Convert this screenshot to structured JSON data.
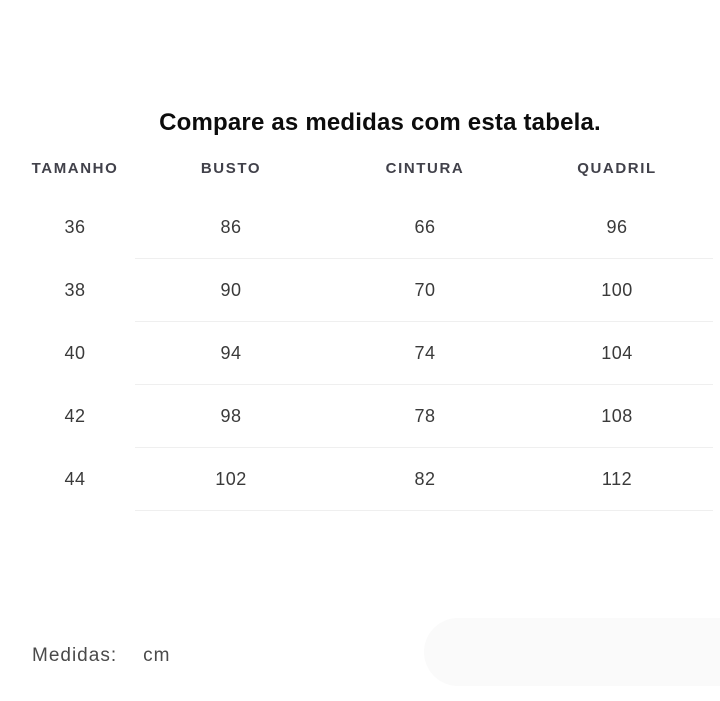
{
  "title": "Compare as medidas com esta tabela.",
  "table": {
    "columns": [
      "TAMANHO",
      "BUSTO",
      "CINTURA",
      "QUADRIL"
    ],
    "rows": [
      [
        "36",
        "86",
        "66",
        "96"
      ],
      [
        "38",
        "90",
        "70",
        "100"
      ],
      [
        "40",
        "94",
        "74",
        "104"
      ],
      [
        "42",
        "98",
        "78",
        "108"
      ],
      [
        "44",
        "102",
        "82",
        "112"
      ]
    ]
  },
  "footer": {
    "label": "Medidas:",
    "unit": "cm"
  },
  "colors": {
    "title_text": "#0c0c0c",
    "header_text": "#41414a",
    "cell_text": "#3a3a3a",
    "footer_text": "#4a4a4a",
    "divider": "#efefef",
    "pill_background": "#fafafa"
  }
}
